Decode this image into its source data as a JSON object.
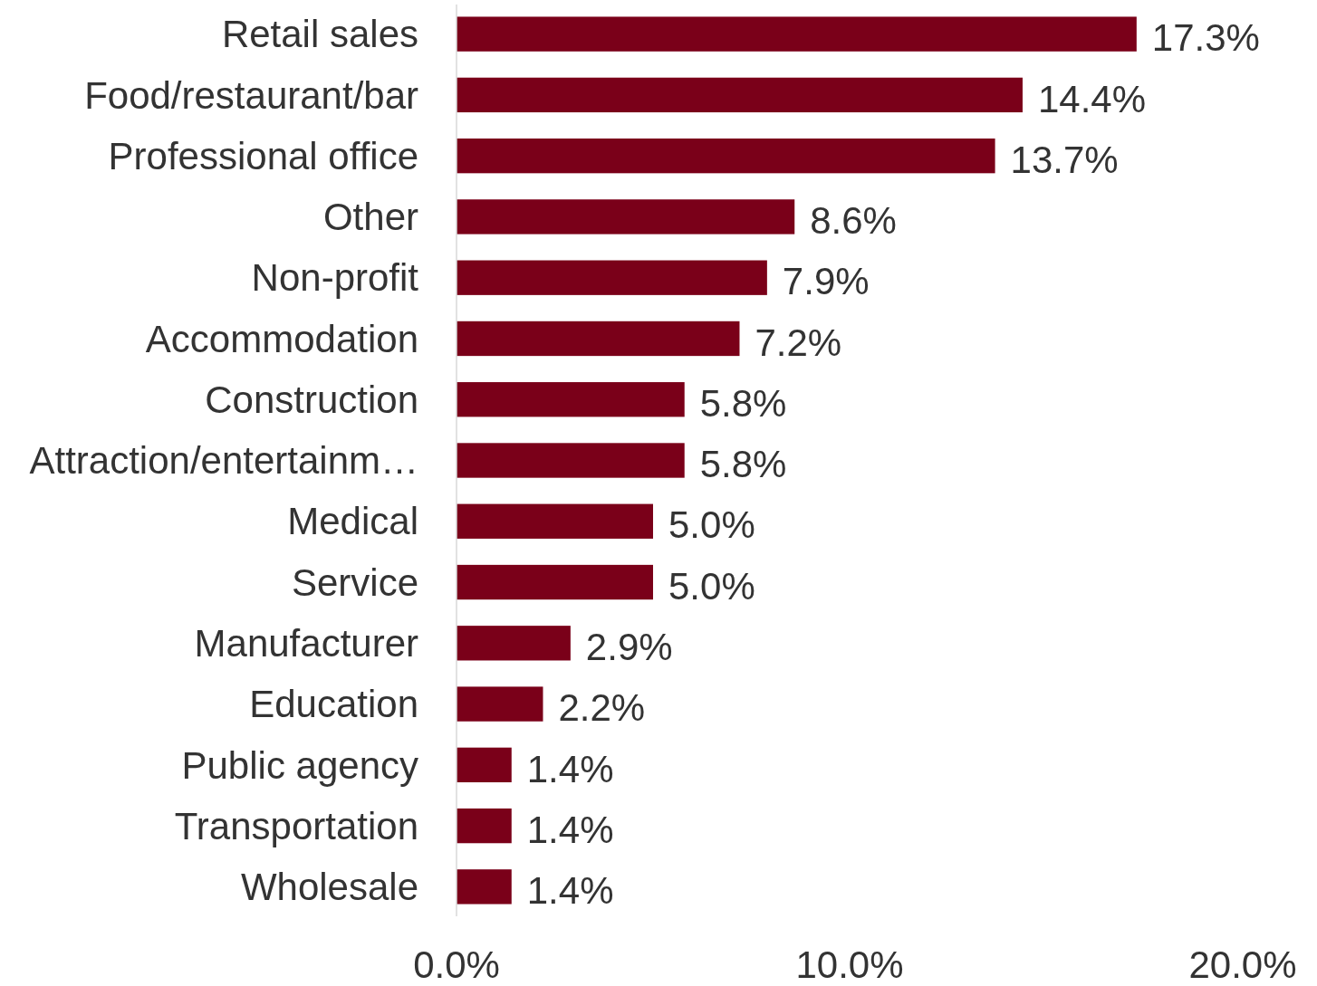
{
  "chart_data": {
    "type": "bar",
    "orientation": "horizontal",
    "categories": [
      "Retail sales",
      "Food/restaurant/bar",
      "Professional office",
      "Other",
      "Non-profit",
      "Accommodation",
      "Construction",
      "Attraction/entertainm…",
      "Medical",
      "Service",
      "Manufacturer",
      "Education",
      "Public agency",
      "Transportation",
      "Wholesale"
    ],
    "values": [
      17.3,
      14.4,
      13.7,
      8.6,
      7.9,
      7.2,
      5.8,
      5.8,
      5.0,
      5.0,
      2.9,
      2.2,
      1.4,
      1.4,
      1.4
    ],
    "value_labels": [
      "17.3%",
      "14.4%",
      "13.7%",
      "8.6%",
      "7.9%",
      "7.2%",
      "5.8%",
      "5.8%",
      "5.0%",
      "5.0%",
      "2.9%",
      "2.2%",
      "1.4%",
      "1.4%",
      "1.4%"
    ],
    "color": "#7a0019",
    "xlim": [
      0,
      20
    ],
    "xticks": [
      {
        "value": 0,
        "label": "0.0%"
      },
      {
        "value": 10,
        "label": "10.0%"
      },
      {
        "value": 20,
        "label": "20.0%"
      }
    ],
    "grid": false
  }
}
